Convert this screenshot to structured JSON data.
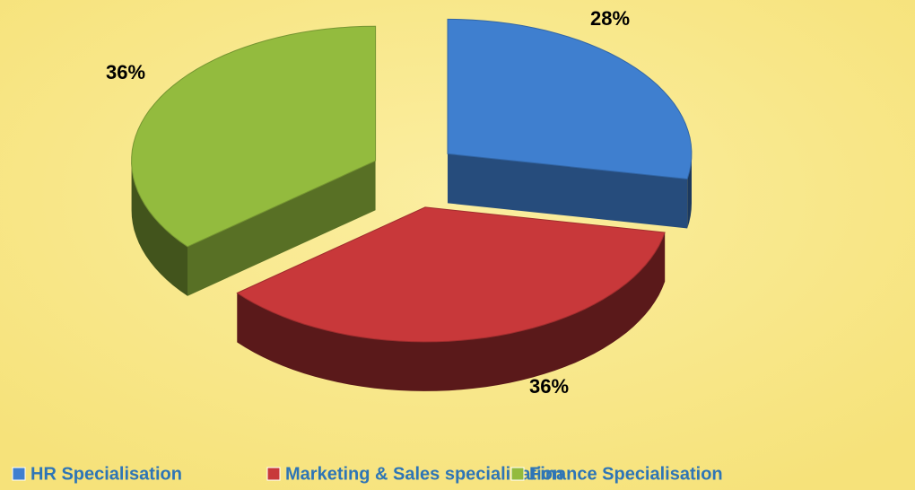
{
  "chart_data": {
    "type": "pie3d",
    "categories": [
      "HR Specialisation",
      "Marketing & Sales specialisation",
      "Finance Specialisation"
    ],
    "values": [
      28,
      36,
      36
    ],
    "value_labels": [
      "28%",
      "36%",
      "36%"
    ],
    "colors": [
      "#3f7fcf",
      "#c8383a",
      "#93bb3e"
    ]
  }
}
